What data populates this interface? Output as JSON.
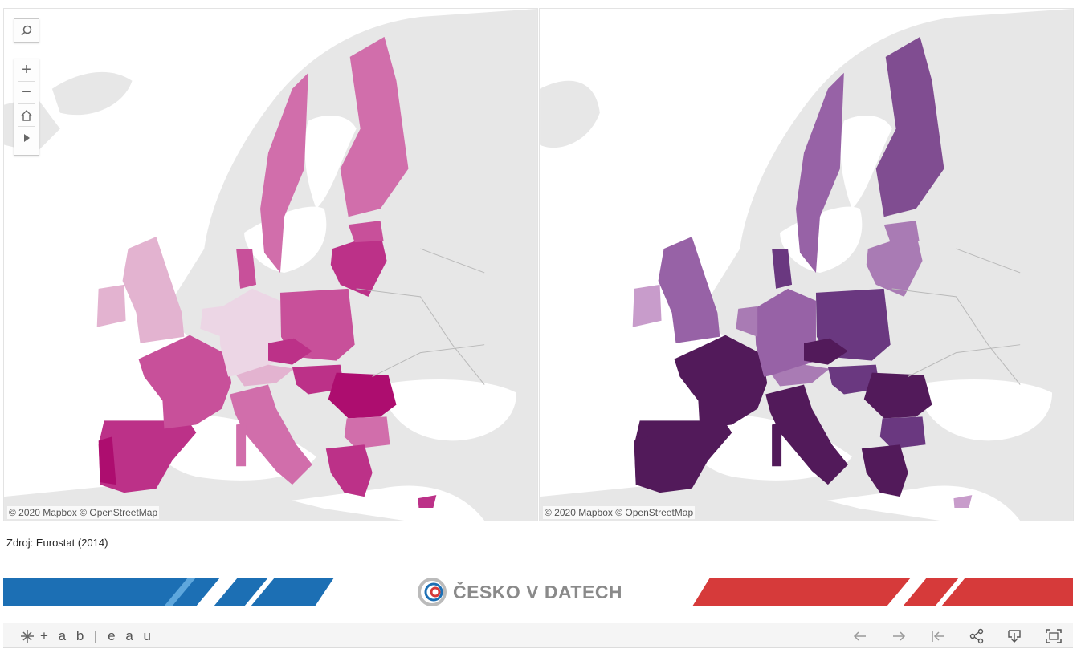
{
  "maps": {
    "left": {
      "attribution": "© 2020 Mapbox  © OpenStreetMap",
      "palette": "pink"
    },
    "right": {
      "attribution": "© 2020 Mapbox  © OpenStreetMap",
      "palette": "purple"
    }
  },
  "source": "Zdroj: Eurostat (2014)",
  "brand": {
    "name": "ČESKO V DATECH"
  },
  "toolbar": {
    "logo_text": "+ a b | e a u"
  },
  "colors": {
    "land": "#e7e7e7",
    "water": "#ffffff",
    "border_line": "#b9b9b9",
    "banner_blue": "#1c6fb4",
    "banner_red": "#d63a3a",
    "pink_scale": [
      "#ecd6e5",
      "#e3b3d0",
      "#d16eab",
      "#c8509a",
      "#bc3188",
      "#ad0d6f"
    ],
    "purple_scale": [
      "#c89ccb",
      "#a97bb4",
      "#9762a6",
      "#804d91",
      "#6a3880",
      "#521a5a"
    ]
  },
  "icons": [
    "search-icon",
    "zoom-in-icon",
    "zoom-out-icon",
    "home-icon",
    "play-icon",
    "tableau-logo-icon",
    "undo-icon",
    "redo-icon",
    "revert-icon",
    "share-icon",
    "download-icon",
    "fullscreen-icon"
  ]
}
